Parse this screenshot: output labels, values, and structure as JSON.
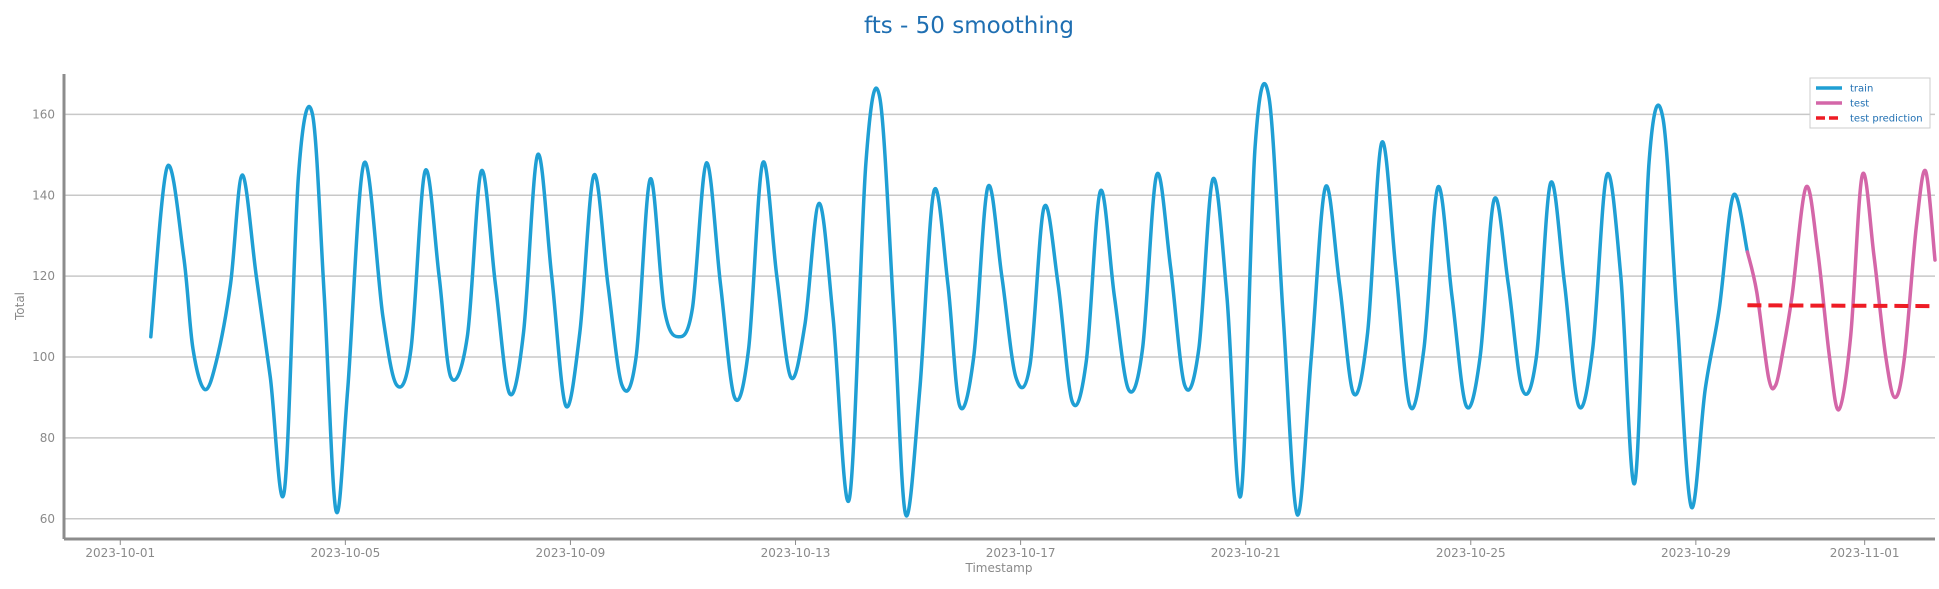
{
  "chart_data": {
    "type": "line",
    "title": "fts - 50 smoothing",
    "xlabel": "Timestamp",
    "ylabel": "Total",
    "x_type": "date",
    "xlim": [
      "2023-09-30T00:00",
      "2023-11-02T06:00"
    ],
    "ylim": [
      55,
      170
    ],
    "x_ticks": [
      "2023-10-01",
      "2023-10-05",
      "2023-10-09",
      "2023-10-13",
      "2023-10-17",
      "2023-10-21",
      "2023-10-25",
      "2023-10-29",
      "2023-11-01"
    ],
    "y_ticks": [
      60,
      80,
      100,
      120,
      140,
      160
    ],
    "grid": "horizontal",
    "legend_position": "top-right",
    "series": [
      {
        "name": "train",
        "color": "#1f9fd4",
        "dash": "solid",
        "points": [
          [
            "2023-10-01T13:00",
            105
          ],
          [
            "2023-10-01T20:00",
            147
          ],
          [
            "2023-10-02T03:00",
            125
          ],
          [
            "2023-10-02T07:00",
            102
          ],
          [
            "2023-10-02T12:00",
            92
          ],
          [
            "2023-10-02T17:00",
            99
          ],
          [
            "2023-10-02T23:00",
            118
          ],
          [
            "2023-10-03T04:00",
            145
          ],
          [
            "2023-10-03T10:00",
            120
          ],
          [
            "2023-10-03T16:00",
            95
          ],
          [
            "2023-10-03T22:00",
            67
          ],
          [
            "2023-10-04T04:00",
            145
          ],
          [
            "2023-10-04T10:00",
            160
          ],
          [
            "2023-10-04T15:00",
            115
          ],
          [
            "2023-10-04T20:00",
            62
          ],
          [
            "2023-10-05T01:00",
            92
          ],
          [
            "2023-10-05T08:00",
            148
          ],
          [
            "2023-10-05T16:00",
            110
          ],
          [
            "2023-10-05T22:00",
            93
          ],
          [
            "2023-10-06T04:00",
            102
          ],
          [
            "2023-10-06T10:00",
            146
          ],
          [
            "2023-10-06T16:00",
            120
          ],
          [
            "2023-10-06T21:00",
            95
          ],
          [
            "2023-10-07T04:00",
            105
          ],
          [
            "2023-10-07T10:00",
            146
          ],
          [
            "2023-10-07T16:00",
            118
          ],
          [
            "2023-10-07T22:00",
            91
          ],
          [
            "2023-10-08T04:00",
            106
          ],
          [
            "2023-10-08T10:00",
            150
          ],
          [
            "2023-10-08T16:00",
            120
          ],
          [
            "2023-10-08T22:00",
            88
          ],
          [
            "2023-10-09T04:00",
            106
          ],
          [
            "2023-10-09T10:00",
            145
          ],
          [
            "2023-10-09T16:00",
            118
          ],
          [
            "2023-10-09T22:00",
            93
          ],
          [
            "2023-10-10T04:00",
            100
          ],
          [
            "2023-10-10T10:00",
            144
          ],
          [
            "2023-10-10T16:00",
            112
          ],
          [
            "2023-10-10T22:00",
            105
          ],
          [
            "2023-10-11T04:00",
            112
          ],
          [
            "2023-10-11T10:00",
            148
          ],
          [
            "2023-10-11T16:00",
            118
          ],
          [
            "2023-10-11T22:00",
            90
          ],
          [
            "2023-10-12T04:00",
            102
          ],
          [
            "2023-10-12T10:00",
            148
          ],
          [
            "2023-10-12T16:00",
            120
          ],
          [
            "2023-10-12T22:00",
            95
          ],
          [
            "2023-10-13T04:00",
            108
          ],
          [
            "2023-10-13T10:00",
            138
          ],
          [
            "2023-10-13T16:00",
            110
          ],
          [
            "2023-10-13T23:00",
            65
          ],
          [
            "2023-10-14T06:00",
            148
          ],
          [
            "2023-10-14T12:00",
            164
          ],
          [
            "2023-10-14T18:00",
            110
          ],
          [
            "2023-10-14T23:00",
            61
          ],
          [
            "2023-10-15T05:00",
            92
          ],
          [
            "2023-10-15T11:00",
            141
          ],
          [
            "2023-10-15T17:00",
            118
          ],
          [
            "2023-10-15T22:00",
            88
          ],
          [
            "2023-10-16T04:00",
            100
          ],
          [
            "2023-10-16T10:00",
            142
          ],
          [
            "2023-10-16T16:00",
            120
          ],
          [
            "2023-10-16T22:00",
            95
          ],
          [
            "2023-10-17T04:00",
            98
          ],
          [
            "2023-10-17T10:00",
            137
          ],
          [
            "2023-10-17T16:00",
            118
          ],
          [
            "2023-10-17T22:00",
            89
          ],
          [
            "2023-10-18T04:00",
            99
          ],
          [
            "2023-10-18T10:00",
            141
          ],
          [
            "2023-10-18T16:00",
            115
          ],
          [
            "2023-10-18T22:00",
            92
          ],
          [
            "2023-10-19T04:00",
            102
          ],
          [
            "2023-10-19T10:00",
            145
          ],
          [
            "2023-10-19T16:00",
            122
          ],
          [
            "2023-10-19T22:00",
            93
          ],
          [
            "2023-10-20T04:00",
            102
          ],
          [
            "2023-10-20T10:00",
            144
          ],
          [
            "2023-10-20T16:00",
            115
          ],
          [
            "2023-10-20T22:00",
            66
          ],
          [
            "2023-10-21T04:00",
            152
          ],
          [
            "2023-10-21T10:00",
            164
          ],
          [
            "2023-10-21T16:00",
            110
          ],
          [
            "2023-10-21T22:00",
            61
          ],
          [
            "2023-10-22T04:00",
            100
          ],
          [
            "2023-10-22T10:00",
            142
          ],
          [
            "2023-10-22T16:00",
            118
          ],
          [
            "2023-10-22T22:00",
            91
          ],
          [
            "2023-10-23T04:00",
            106
          ],
          [
            "2023-10-23T10:00",
            153
          ],
          [
            "2023-10-23T16:00",
            122
          ],
          [
            "2023-10-23T22:00",
            88
          ],
          [
            "2023-10-24T04:00",
            102
          ],
          [
            "2023-10-24T10:00",
            142
          ],
          [
            "2023-10-24T16:00",
            115
          ],
          [
            "2023-10-24T22:00",
            88
          ],
          [
            "2023-10-25T04:00",
            100
          ],
          [
            "2023-10-25T10:00",
            139
          ],
          [
            "2023-10-25T16:00",
            118
          ],
          [
            "2023-10-25T22:00",
            92
          ],
          [
            "2023-10-26T04:00",
            100
          ],
          [
            "2023-10-26T10:00",
            143
          ],
          [
            "2023-10-26T16:00",
            118
          ],
          [
            "2023-10-26T22:00",
            88
          ],
          [
            "2023-10-27T04:00",
            102
          ],
          [
            "2023-10-27T10:00",
            145
          ],
          [
            "2023-10-27T16:00",
            120
          ],
          [
            "2023-10-27T22:00",
            69
          ],
          [
            "2023-10-28T04:00",
            148
          ],
          [
            "2023-10-28T10:00",
            159
          ],
          [
            "2023-10-28T16:00",
            110
          ],
          [
            "2023-10-28T22:00",
            63
          ],
          [
            "2023-10-29T04:00",
            92
          ],
          [
            "2023-10-29T10:00",
            112
          ],
          [
            "2023-10-29T16:00",
            140
          ],
          [
            "2023-10-29T22:00",
            126
          ]
        ]
      },
      {
        "name": "test",
        "color": "#d466a8",
        "dash": "solid",
        "points": [
          [
            "2023-10-29T22:00",
            126
          ],
          [
            "2023-10-30T02:00",
            116
          ],
          [
            "2023-10-30T07:00",
            95
          ],
          [
            "2023-10-30T10:00",
            93
          ],
          [
            "2023-10-30T13:00",
            101
          ],
          [
            "2023-10-30T17:00",
            115
          ],
          [
            "2023-10-30T23:00",
            142
          ],
          [
            "2023-10-31T04:00",
            126
          ],
          [
            "2023-10-31T09:00",
            100
          ],
          [
            "2023-10-31T13:00",
            87
          ],
          [
            "2023-10-31T18:00",
            105
          ],
          [
            "2023-10-31T23:00",
            145
          ],
          [
            "2023-11-01T04:00",
            125
          ],
          [
            "2023-11-01T09:00",
            100
          ],
          [
            "2023-11-01T13:00",
            90
          ],
          [
            "2023-11-01T17:00",
            100
          ],
          [
            "2023-11-01T22:00",
            132
          ],
          [
            "2023-11-02T02:00",
            146
          ],
          [
            "2023-11-02T06:00",
            124
          ]
        ]
      },
      {
        "name": "test prediction",
        "color": "#ee1c25",
        "dash": "dashed",
        "points": [
          [
            "2023-10-29T22:00",
            112.8
          ],
          [
            "2023-11-02T06:00",
            112.6
          ]
        ]
      }
    ]
  }
}
